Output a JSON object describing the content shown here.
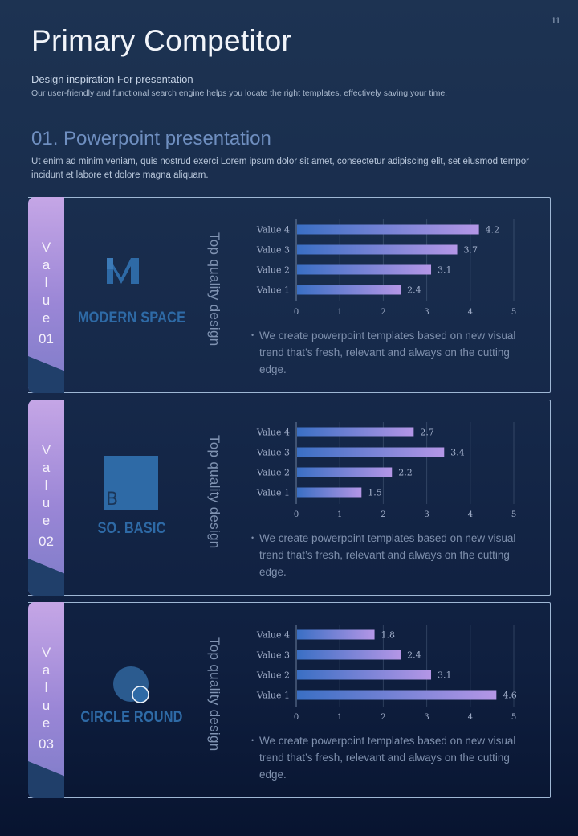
{
  "page": {
    "number": "11",
    "title": "Primary Competitor",
    "subtitle": "Design inspiration For presentation",
    "subdesc": "Our user-friendly and functional search engine helps you locate the right templates, effectively saving your time.",
    "section_title": "01. Powerpoint presentation",
    "section_desc": "Ut enim ad minim veniam, quis nostrud exerci  Lorem ipsum dolor sit amet, consectetur  adipiscing elit, set eiusmod tempor incidunt et labore et dolore magna aliquam."
  },
  "colors": {
    "bar_start": "#3a6fc4",
    "bar_end": "#b496e6",
    "tab_top": "#c5a6e6",
    "brand_blue": "#2e6aa6",
    "value_text": "#a4b1cc"
  },
  "cards": [
    {
      "tab_letters": [
        "V",
        "a",
        "l",
        "u",
        "e"
      ],
      "tab_number": "01",
      "logo_icon": "letter-m-logo",
      "brand_name": "MODERN SPACE",
      "vertical_label": "Top quality design",
      "bullet_text": "We create powerpoint templates based on new visual trend that’s fresh, relevant and always on the cutting edge."
    },
    {
      "tab_letters": [
        "V",
        "a",
        "l",
        "u",
        "e"
      ],
      "tab_number": "02",
      "logo_icon": "square-b-logo",
      "logo_letter": "B",
      "brand_name": "SO. BASIC",
      "vertical_label": "Top quality design",
      "bullet_text": "We create powerpoint templates based on new visual trend that’s fresh, relevant and always on the cutting edge."
    },
    {
      "tab_letters": [
        "V",
        "a",
        "l",
        "u",
        "e"
      ],
      "tab_number": "03",
      "logo_icon": "circle-logo",
      "brand_name": "CIRCLE ROUND",
      "vertical_label": "Top quality design",
      "bullet_text": "We create powerpoint templates based on new visual trend that’s fresh, relevant and always on the cutting edge."
    }
  ],
  "chart_data": [
    {
      "type": "bar",
      "orientation": "horizontal",
      "categories": [
        "Value 1",
        "Value 2",
        "Value 3",
        "Value 4"
      ],
      "values": [
        2.4,
        3.1,
        3.7,
        4.2
      ],
      "xlim": [
        0,
        5
      ],
      "ticks": [
        "0",
        "1",
        "2",
        "3",
        "4",
        "5"
      ],
      "title": "",
      "xlabel": "",
      "ylabel": ""
    },
    {
      "type": "bar",
      "orientation": "horizontal",
      "categories": [
        "Value 1",
        "Value 2",
        "Value 3",
        "Value 4"
      ],
      "values": [
        1.5,
        2.2,
        3.4,
        2.7
      ],
      "xlim": [
        0,
        5
      ],
      "ticks": [
        "0",
        "1",
        "2",
        "3",
        "4",
        "5"
      ],
      "title": "",
      "xlabel": "",
      "ylabel": ""
    },
    {
      "type": "bar",
      "orientation": "horizontal",
      "categories": [
        "Value 1",
        "Value 2",
        "Value 3",
        "Value 4"
      ],
      "values": [
        4.6,
        3.1,
        2.4,
        1.8
      ],
      "xlim": [
        0,
        5
      ],
      "ticks": [
        "0",
        "1",
        "2",
        "3",
        "4",
        "5"
      ],
      "title": "",
      "xlabel": "",
      "ylabel": ""
    }
  ]
}
